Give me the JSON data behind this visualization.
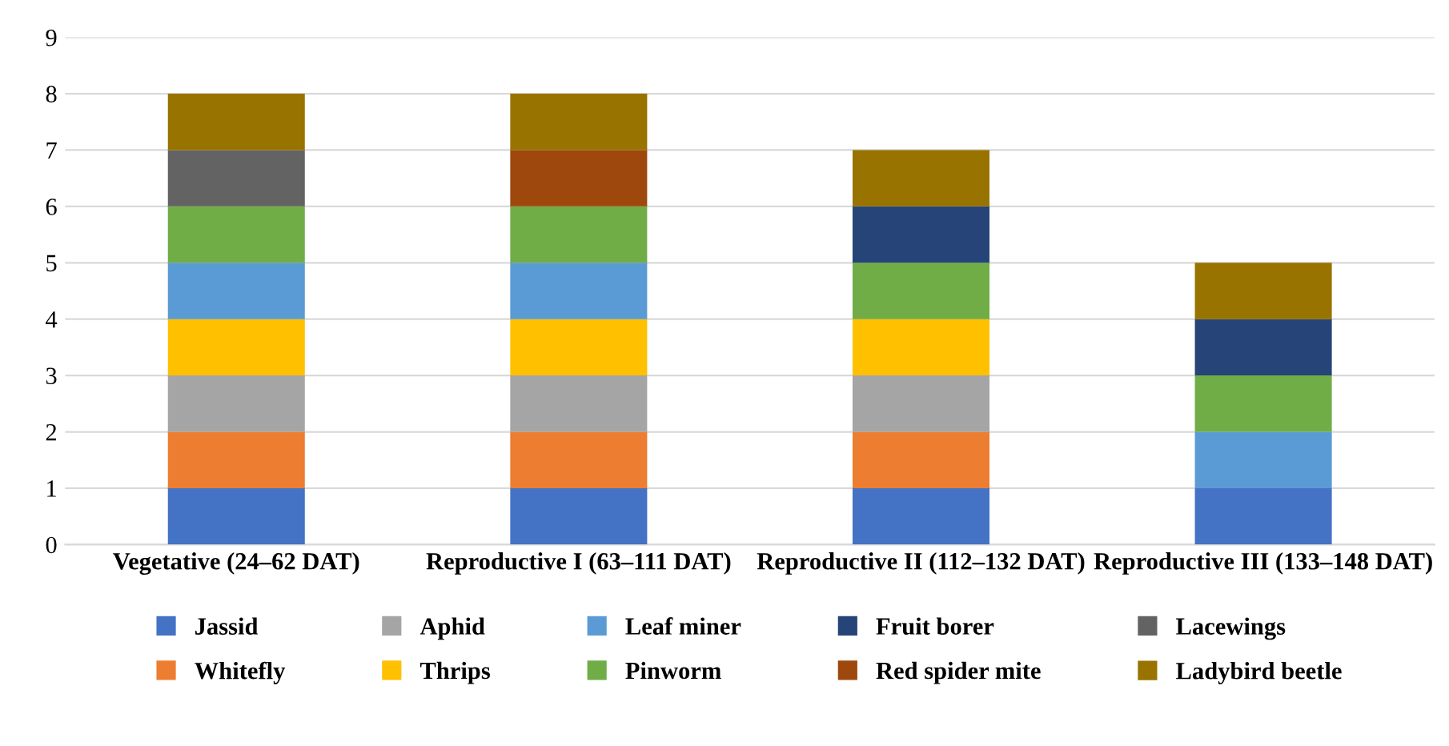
{
  "chart_data": {
    "type": "bar",
    "stacked": true,
    "categories": [
      "Vegetative (24–62 DAT)",
      "Reproductive I (63–111 DAT)",
      "Reproductive II (112–132 DAT)",
      "Reproductive III (133–148 DAT)"
    ],
    "series": [
      {
        "name": "Jassid",
        "color": "#4472c4",
        "values": [
          1,
          1,
          1,
          1
        ]
      },
      {
        "name": "Whitefly",
        "color": "#ed7d31",
        "values": [
          1,
          1,
          1,
          null
        ]
      },
      {
        "name": "Aphid",
        "color": "#a5a5a5",
        "values": [
          1,
          1,
          1,
          null
        ]
      },
      {
        "name": "Thrips",
        "color": "#ffc000",
        "values": [
          1,
          1,
          1,
          null
        ]
      },
      {
        "name": "Leaf miner",
        "color": "#5b9bd5",
        "values": [
          1,
          1,
          null,
          1
        ]
      },
      {
        "name": "Pinworm",
        "color": "#70ad47",
        "values": [
          1,
          1,
          1,
          1
        ]
      },
      {
        "name": "Fruit borer",
        "color": "#264478",
        "values": [
          null,
          null,
          1,
          1
        ]
      },
      {
        "name": "Red spider mite",
        "color": "#9e480e",
        "values": [
          null,
          1,
          null,
          null
        ]
      },
      {
        "name": "Lacewings",
        "color": "#636363",
        "values": [
          1,
          null,
          null,
          null
        ]
      },
      {
        "name": "Ladybird beetle",
        "color": "#997300",
        "values": [
          1,
          1,
          1,
          1
        ]
      }
    ],
    "ylim": [
      0,
      9
    ],
    "yticks": [
      0,
      1,
      2,
      3,
      4,
      5,
      6,
      7,
      8,
      9
    ],
    "grid": "y",
    "legend": "bottom"
  }
}
